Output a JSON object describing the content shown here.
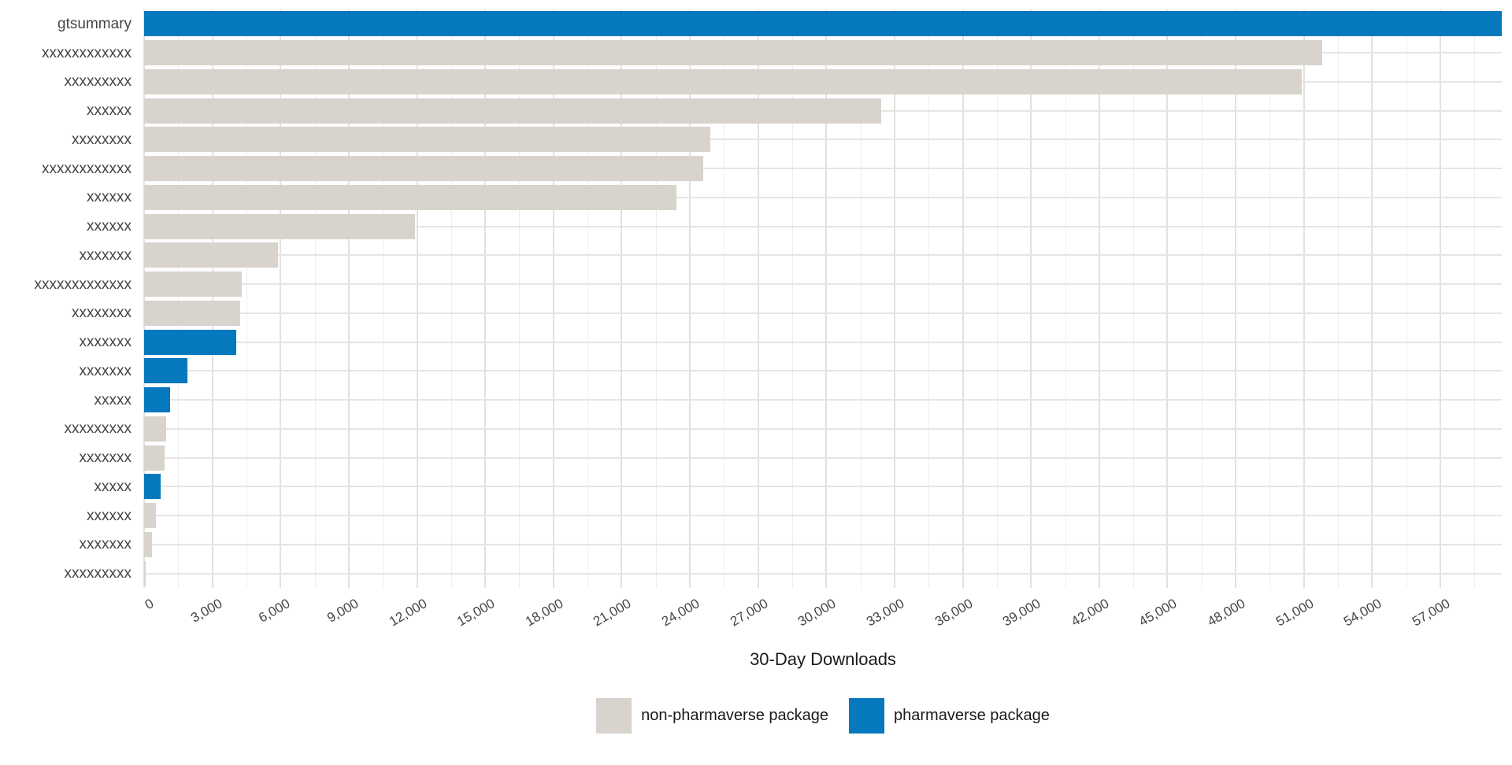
{
  "chart_data": {
    "type": "bar",
    "orientation": "horizontal",
    "title": "",
    "xlabel": "30-Day Downloads",
    "ylabel": "",
    "xlim": [
      0,
      59700
    ],
    "grid": "on",
    "legend_position": "bottom",
    "x_ticks": [
      {
        "value": 0,
        "label": "0"
      },
      {
        "value": 3000,
        "label": "3,000"
      },
      {
        "value": 6000,
        "label": "6,000"
      },
      {
        "value": 9000,
        "label": "9,000"
      },
      {
        "value": 12000,
        "label": "12,000"
      },
      {
        "value": 15000,
        "label": "15,000"
      },
      {
        "value": 18000,
        "label": "18,000"
      },
      {
        "value": 21000,
        "label": "21,000"
      },
      {
        "value": 24000,
        "label": "24,000"
      },
      {
        "value": 27000,
        "label": "27,000"
      },
      {
        "value": 30000,
        "label": "30,000"
      },
      {
        "value": 33000,
        "label": "33,000"
      },
      {
        "value": 36000,
        "label": "36,000"
      },
      {
        "value": 39000,
        "label": "39,000"
      },
      {
        "value": 42000,
        "label": "42,000"
      },
      {
        "value": 45000,
        "label": "45,000"
      },
      {
        "value": 48000,
        "label": "48,000"
      },
      {
        "value": 51000,
        "label": "51,000"
      },
      {
        "value": 54000,
        "label": "54,000"
      },
      {
        "value": 57000,
        "label": "57,000"
      }
    ],
    "minor_tick_step": 1500,
    "bars": [
      {
        "label": "gtsummary",
        "value": 59700,
        "clipped": true,
        "group": "pharmaverse package"
      },
      {
        "label": "xxxxxxxxxxxx",
        "value": 51800,
        "clipped": false,
        "group": "non-pharmaverse package"
      },
      {
        "label": "xxxxxxxxx",
        "value": 50900,
        "clipped": false,
        "group": "non-pharmaverse package"
      },
      {
        "label": "xxxxxx",
        "value": 32400,
        "clipped": false,
        "group": "non-pharmaverse package"
      },
      {
        "label": "xxxxxxxx",
        "value": 24900,
        "clipped": false,
        "group": "non-pharmaverse package"
      },
      {
        "label": "xxxxxxxxxxxx",
        "value": 24600,
        "clipped": false,
        "group": "non-pharmaverse package"
      },
      {
        "label": "xxxxxx",
        "value": 23400,
        "clipped": false,
        "group": "non-pharmaverse package"
      },
      {
        "label": "xxxxxx",
        "value": 11900,
        "clipped": false,
        "group": "non-pharmaverse package"
      },
      {
        "label": "xxxxxxx",
        "value": 5900,
        "clipped": false,
        "group": "non-pharmaverse package"
      },
      {
        "label": "xxxxxxxxxxxxx",
        "value": 4300,
        "clipped": false,
        "group": "non-pharmaverse package"
      },
      {
        "label": "xxxxxxxx",
        "value": 4210,
        "clipped": false,
        "group": "non-pharmaverse package"
      },
      {
        "label": "xxxxxxx",
        "value": 4060,
        "clipped": false,
        "group": "pharmaverse package"
      },
      {
        "label": "xxxxxxx",
        "value": 1920,
        "clipped": false,
        "group": "pharmaverse package"
      },
      {
        "label": "xxxxx",
        "value": 1150,
        "clipped": false,
        "group": "pharmaverse package"
      },
      {
        "label": "xxxxxxxxx",
        "value": 980,
        "clipped": false,
        "group": "non-pharmaverse package"
      },
      {
        "label": "xxxxxxx",
        "value": 890,
        "clipped": false,
        "group": "non-pharmaverse package"
      },
      {
        "label": "xxxxx",
        "value": 720,
        "clipped": false,
        "group": "pharmaverse package"
      },
      {
        "label": "xxxxxx",
        "value": 510,
        "clipped": false,
        "group": "non-pharmaverse package"
      },
      {
        "label": "xxxxxxx",
        "value": 360,
        "clipped": false,
        "group": "non-pharmaverse package"
      },
      {
        "label": "xxxxxxxxx",
        "value": 75,
        "clipped": false,
        "group": "non-pharmaverse package"
      }
    ],
    "legend": [
      {
        "label": "non-pharmaverse package",
        "color": "#d8d3cc"
      },
      {
        "label": "pharmaverse package",
        "color": "#0678be"
      }
    ]
  },
  "colors": {
    "non_pharmaverse_bar": "#d8d3cc",
    "pharmaverse_bar": "#0678be",
    "grid_major": "#e3e1de",
    "grid_minor": "#efeeec",
    "axis_text": "#454545",
    "title_text": "#1a1a1a",
    "background": "#ffffff"
  }
}
